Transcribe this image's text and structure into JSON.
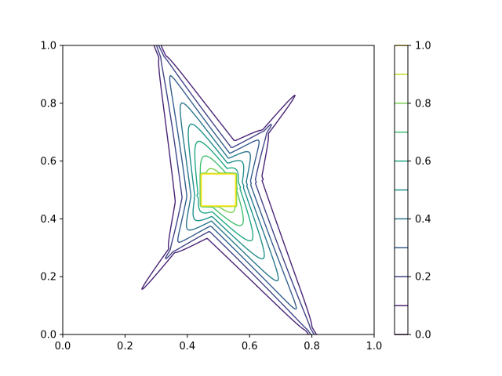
{
  "chart_data": {
    "type": "contour",
    "title": "",
    "xlabel": "",
    "ylabel": "",
    "xlim": [
      0,
      1
    ],
    "ylim": [
      0,
      1
    ],
    "x_ticks": [
      "0.0",
      "0.2",
      "0.4",
      "0.6",
      "0.8",
      "1.0"
    ],
    "y_ticks": [
      "0.0",
      "0.2",
      "0.4",
      "0.6",
      "0.8",
      "1.0"
    ],
    "grid": false,
    "colormap": "viridis",
    "colorbar": {
      "range": [
        0,
        1
      ],
      "tick_labels": [
        "0.0",
        "0.2",
        "0.4",
        "0.6",
        "0.8",
        "1.0"
      ],
      "levels": [
        0.0,
        0.1,
        0.2,
        0.3,
        0.4,
        0.5,
        0.6,
        0.7,
        0.8,
        0.9,
        1.0
      ],
      "level_colors": [
        "#440154",
        "#482475",
        "#414487",
        "#355f8d",
        "#2a788e",
        "#21918c",
        "#22a884",
        "#44bf70",
        "#7ad151",
        "#bddf26",
        "#fde725"
      ]
    },
    "field": {
      "description_of_shape": "four-armed star centred at (0.5, 0.5) with a flat plateau square",
      "center": [
        0.5,
        0.5
      ],
      "plateau_half_width": 0.055,
      "arms": [
        {
          "name": "upper-left",
          "tip": [
            0.32,
            0.96
          ]
        },
        {
          "name": "lower-right",
          "tip": [
            0.79,
            0.02
          ]
        },
        {
          "name": "upper-right",
          "tip": [
            0.65,
            0.7
          ]
        },
        {
          "name": "lower-left",
          "tip": [
            0.35,
            0.29
          ]
        }
      ]
    }
  }
}
